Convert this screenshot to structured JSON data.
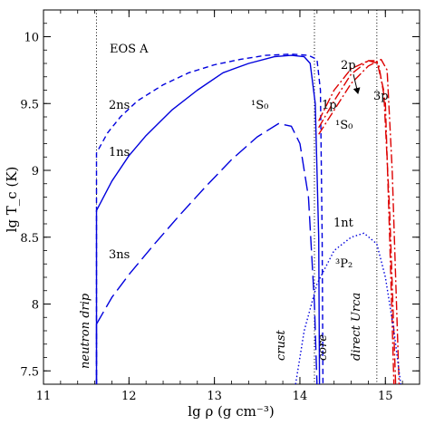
{
  "chart_data": {
    "type": "line",
    "xlabel": "lg ρ (g cm⁻³)",
    "ylabel": "lg T_c (K)",
    "xlim": [
      11,
      15.4
    ],
    "ylim": [
      7.4,
      10.2
    ],
    "x_ticks": [
      11,
      12,
      13,
      14,
      15
    ],
    "y_ticks": [
      7.5,
      8,
      8.5,
      9,
      9.5,
      10
    ],
    "x_tick_labels": [
      "11",
      "12",
      "13",
      "14",
      "15"
    ],
    "y_tick_labels": [
      "7.5",
      "8",
      "8.5",
      "9",
      "9.5",
      "10"
    ],
    "grid": false,
    "vlines": [
      {
        "x": 11.62,
        "label": "neutron drip",
        "style": "dotted"
      },
      {
        "x": 14.17,
        "label": "crust",
        "style": "dotted"
      },
      {
        "x": 14.9,
        "label": "direct Urca",
        "style": "dotted"
      }
    ],
    "region_labels": {
      "core": "core"
    },
    "annotations": {
      "eos": "EOS A",
      "s0_crust": "¹S₀",
      "s0_core": "¹S₀",
      "p2": "³P₂",
      "arrow_label": "2p"
    },
    "series": [
      {
        "name": "1ns",
        "color": "#0000dd",
        "dash": "solid",
        "x": [
          11.62,
          11.62,
          11.8,
          12.0,
          12.2,
          12.5,
          12.8,
          13.1,
          13.4,
          13.7,
          13.9,
          14.05,
          14.12,
          14.18,
          14.22,
          14.23
        ],
        "y": [
          7.4,
          8.7,
          8.92,
          9.11,
          9.26,
          9.45,
          9.6,
          9.73,
          9.8,
          9.85,
          9.86,
          9.85,
          9.8,
          9.5,
          8.5,
          7.4
        ]
      },
      {
        "name": "2ns",
        "color": "#0000dd",
        "dash": "6,4",
        "x": [
          11.62,
          11.62,
          11.75,
          11.9,
          12.1,
          12.4,
          12.7,
          13.0,
          13.3,
          13.6,
          13.9,
          14.1,
          14.2,
          14.24,
          14.26,
          14.27
        ],
        "y": [
          7.4,
          9.13,
          9.28,
          9.4,
          9.52,
          9.64,
          9.73,
          9.79,
          9.83,
          9.86,
          9.87,
          9.86,
          9.83,
          9.6,
          8.5,
          7.4
        ]
      },
      {
        "name": "3ns",
        "color": "#0000dd",
        "dash": "16,6",
        "x": [
          11.62,
          11.62,
          11.8,
          12.0,
          12.3,
          12.6,
          12.9,
          13.2,
          13.5,
          13.75,
          13.9,
          14.0,
          14.1,
          14.17,
          14.2
        ],
        "y": [
          7.4,
          7.85,
          8.05,
          8.22,
          8.45,
          8.67,
          8.88,
          9.08,
          9.25,
          9.35,
          9.33,
          9.2,
          8.8,
          8.0,
          7.4
        ]
      },
      {
        "name": "1p",
        "color": "#dd0000",
        "dash": "10,3,2,3",
        "x": [
          14.22,
          14.4,
          14.6,
          14.8,
          14.92,
          15.0,
          15.05,
          15.1
        ],
        "y": [
          9.37,
          9.6,
          9.76,
          9.82,
          9.8,
          9.5,
          8.5,
          7.4
        ]
      },
      {
        "name": "2p",
        "color": "#dd0000",
        "dash": "10,3,2,3",
        "x": [
          14.22,
          14.4,
          14.6,
          14.8,
          14.9,
          14.98,
          15.05,
          15.12
        ],
        "y": [
          9.32,
          9.52,
          9.72,
          9.82,
          9.82,
          9.6,
          8.7,
          7.4
        ]
      },
      {
        "name": "3p",
        "color": "#dd0000",
        "dash": "10,3,2,3",
        "x": [
          14.22,
          14.4,
          14.6,
          14.8,
          14.95,
          15.02,
          15.08,
          15.16
        ],
        "y": [
          9.27,
          9.45,
          9.65,
          9.78,
          9.83,
          9.75,
          9.0,
          7.4
        ]
      },
      {
        "name": "1nt",
        "color": "#0000dd",
        "dash": "1.5,2.5",
        "x": [
          13.95,
          14.05,
          14.2,
          14.4,
          14.6,
          14.75,
          14.9,
          15.0,
          15.1,
          15.18
        ],
        "y": [
          7.4,
          7.8,
          8.15,
          8.4,
          8.5,
          8.53,
          8.45,
          8.2,
          7.8,
          7.4
        ]
      }
    ]
  }
}
